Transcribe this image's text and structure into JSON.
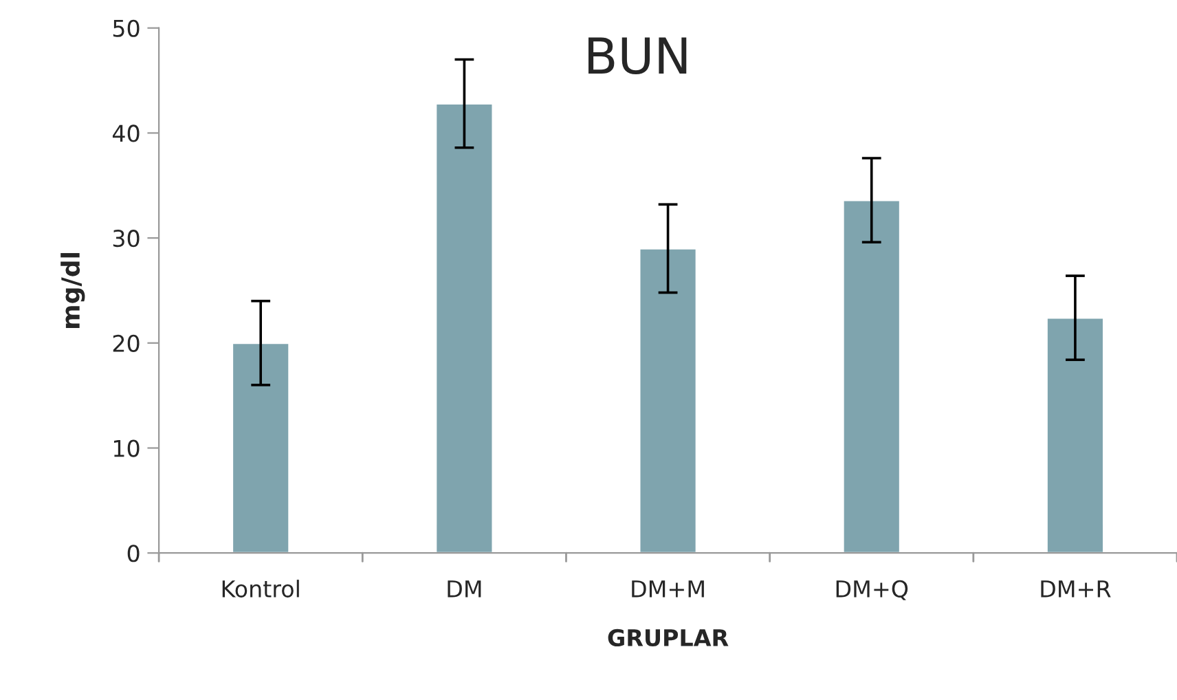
{
  "chart_data": {
    "type": "bar",
    "title": "BUN",
    "xlabel": "GRUPLAR",
    "ylabel": "mg/dl",
    "categories": [
      "Kontrol",
      "DM",
      "DM+M",
      "DM+Q",
      "DM+R"
    ],
    "values": [
      20.0,
      42.8,
      29.0,
      33.6,
      22.4
    ],
    "errors": [
      4.0,
      4.2,
      4.2,
      4.0,
      4.0
    ],
    "color": "#7fa4ae",
    "ylim": [
      0,
      50
    ],
    "yticks": [
      0,
      10,
      20,
      30,
      40,
      50
    ],
    "grid": false
  }
}
